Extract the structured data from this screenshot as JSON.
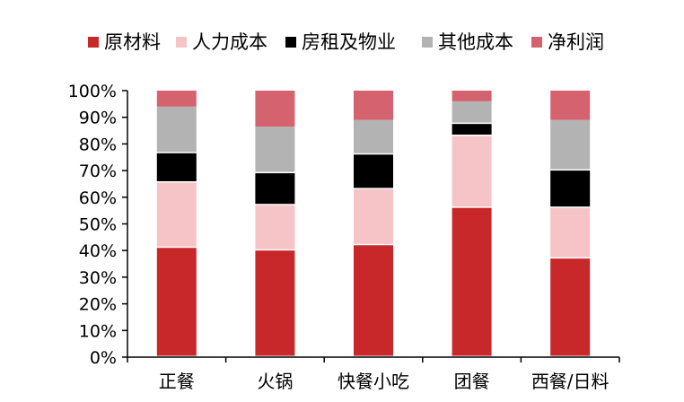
{
  "chart_data": {
    "type": "bar",
    "stacked": true,
    "percent": true,
    "categories": [
      "正餐",
      "火锅",
      "快餐小吃",
      "团餐",
      "西餐/日料"
    ],
    "series": [
      {
        "name": "原材料",
        "color": "#c9282a",
        "values": [
          41,
          40,
          42,
          56,
          37
        ]
      },
      {
        "name": "人力成本",
        "color": "#f6c4c6",
        "values": [
          24.5,
          17,
          21,
          27,
          19
        ]
      },
      {
        "name": "房租及物业",
        "color": "#000000",
        "values": [
          11,
          12,
          13,
          4.5,
          14
        ]
      },
      {
        "name": "其他成本",
        "color": "#b3b3b3",
        "values": [
          17.5,
          17.5,
          13,
          8.5,
          19
        ]
      },
      {
        "name": "净利润",
        "color": "#d4636f",
        "values": [
          6,
          13.5,
          11,
          4,
          11
        ]
      }
    ],
    "ylim": [
      0,
      100
    ],
    "yticks": [
      "0%",
      "10%",
      "20%",
      "30%",
      "40%",
      "50%",
      "60%",
      "70%",
      "80%",
      "90%",
      "100%"
    ],
    "legend_position": "top",
    "grid": false
  }
}
